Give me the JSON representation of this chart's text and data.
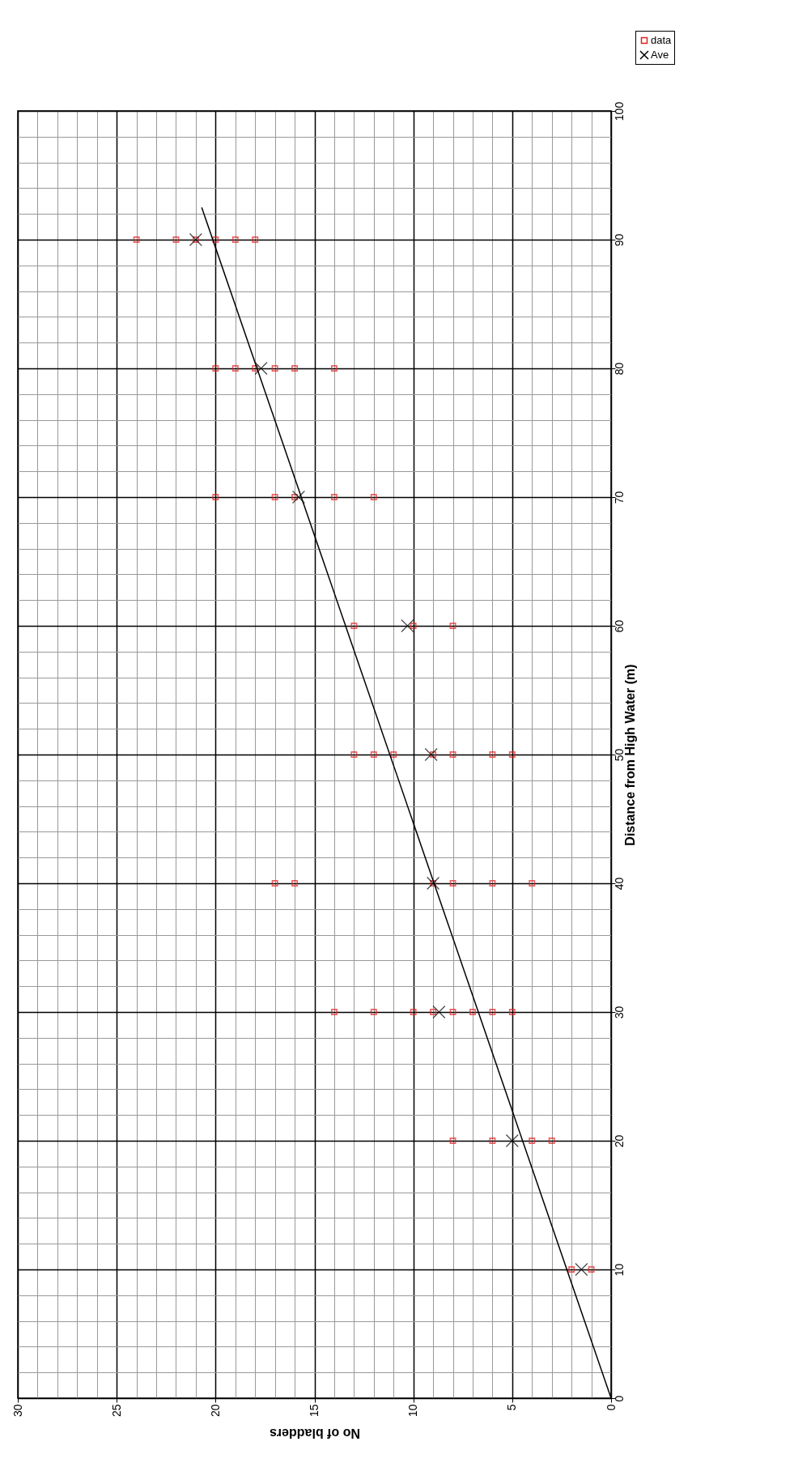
{
  "chart_data": {
    "type": "scatter",
    "xlabel": "No of bladders",
    "ylabel": "Distance from High Water (m)",
    "xlim": [
      30,
      0
    ],
    "ylim": [
      0,
      100
    ],
    "yticks": [
      0,
      {
        "value": 2,
        "label": null
      },
      {
        "value": 4,
        "label": null
      },
      {
        "value": 6,
        "label": null
      },
      {
        "value": 8,
        "label": null
      },
      10,
      {
        "value": 12,
        "label": null
      },
      {
        "value": 14,
        "label": null
      },
      {
        "value": 16,
        "label": null
      },
      {
        "value": 18,
        "label": null
      },
      20,
      {
        "value": 22,
        "label": null
      },
      {
        "value": 24,
        "label": null
      },
      {
        "value": 26,
        "label": null
      },
      {
        "value": 28,
        "label": null
      },
      30,
      {
        "value": 32,
        "label": null
      },
      {
        "value": 34,
        "label": null
      },
      {
        "value": 36,
        "label": null
      },
      {
        "value": 38,
        "label": null
      },
      40,
      {
        "value": 42,
        "label": null
      },
      {
        "value": 44,
        "label": null
      },
      {
        "value": 46,
        "label": null
      },
      {
        "value": 48,
        "label": null
      },
      50,
      {
        "value": 52,
        "label": null
      },
      {
        "value": 54,
        "label": null
      },
      {
        "value": 56,
        "label": null
      },
      {
        "value": 58,
        "label": null
      },
      60,
      {
        "value": 62,
        "label": null
      },
      {
        "value": 64,
        "label": null
      },
      {
        "value": 66,
        "label": null
      },
      {
        "value": 68,
        "label": null
      },
      70,
      {
        "value": 72,
        "label": null
      },
      {
        "value": 74,
        "label": null
      },
      {
        "value": 76,
        "label": null
      },
      {
        "value": 78,
        "label": null
      },
      80,
      {
        "value": 82,
        "label": null
      },
      {
        "value": 84,
        "label": null
      },
      {
        "value": 86,
        "label": null
      },
      {
        "value": 88,
        "label": null
      },
      90,
      {
        "value": 92,
        "label": null
      },
      {
        "value": 94,
        "label": null
      },
      {
        "value": 96,
        "label": null
      },
      {
        "value": 98,
        "label": null
      },
      100
    ],
    "xticks": [
      30,
      {
        "value": 29,
        "label": null
      },
      {
        "value": 28,
        "label": null
      },
      {
        "value": 27,
        "label": null
      },
      {
        "value": 26,
        "label": null
      },
      25,
      {
        "value": 24,
        "label": null
      },
      {
        "value": 23,
        "label": null
      },
      {
        "value": 22,
        "label": null
      },
      {
        "value": 21,
        "label": null
      },
      20,
      {
        "value": 19,
        "label": null
      },
      {
        "value": 18,
        "label": null
      },
      {
        "value": 17,
        "label": null
      },
      {
        "value": 16,
        "label": null
      },
      15,
      {
        "value": 14,
        "label": null
      },
      {
        "value": 13,
        "label": null
      },
      {
        "value": 12,
        "label": null
      },
      {
        "value": 11,
        "label": null
      },
      10,
      {
        "value": 9,
        "label": null
      },
      {
        "value": 8,
        "label": null
      },
      {
        "value": 7,
        "label": null
      },
      {
        "value": 6,
        "label": null
      },
      5,
      {
        "value": 4,
        "label": null
      },
      {
        "value": 3,
        "label": null
      },
      {
        "value": 2,
        "label": null
      },
      {
        "value": 1,
        "label": null
      },
      0
    ],
    "grid": true,
    "legend": "top right",
    "series": [
      {
        "name": "data",
        "marker": "square",
        "color": "#e02020",
        "x": [
          2,
          1,
          8,
          6,
          4,
          3,
          14,
          12,
          10,
          9,
          8,
          7,
          6,
          5,
          17,
          16,
          9,
          8,
          6,
          4,
          13,
          12,
          11,
          9,
          8,
          6,
          5,
          13,
          10,
          8,
          20,
          17,
          16,
          14,
          12,
          20,
          19,
          18,
          17,
          16,
          14,
          24,
          22,
          21,
          20,
          19,
          18
        ],
        "values": [
          10,
          10,
          20,
          20,
          20,
          20,
          30,
          30,
          30,
          30,
          30,
          30,
          30,
          30,
          40,
          40,
          40,
          40,
          40,
          40,
          50,
          50,
          50,
          50,
          50,
          50,
          50,
          60,
          60,
          60,
          70,
          70,
          70,
          70,
          70,
          80,
          80,
          80,
          80,
          80,
          80,
          90,
          90,
          90,
          90,
          90,
          90
        ]
      },
      {
        "name": "Ave",
        "marker": "cross",
        "color": "#000000",
        "x": [
          1.5,
          5,
          8.7,
          9,
          9.1,
          10.3,
          15.8,
          17.7,
          21
        ],
        "values": [
          10,
          20,
          30,
          40,
          50,
          60,
          70,
          80,
          90
        ]
      },
      {
        "type": "line",
        "marker": "none",
        "color": "#000000",
        "x": [
          0,
          20.7
        ],
        "values": [
          0,
          92.5
        ]
      }
    ]
  }
}
